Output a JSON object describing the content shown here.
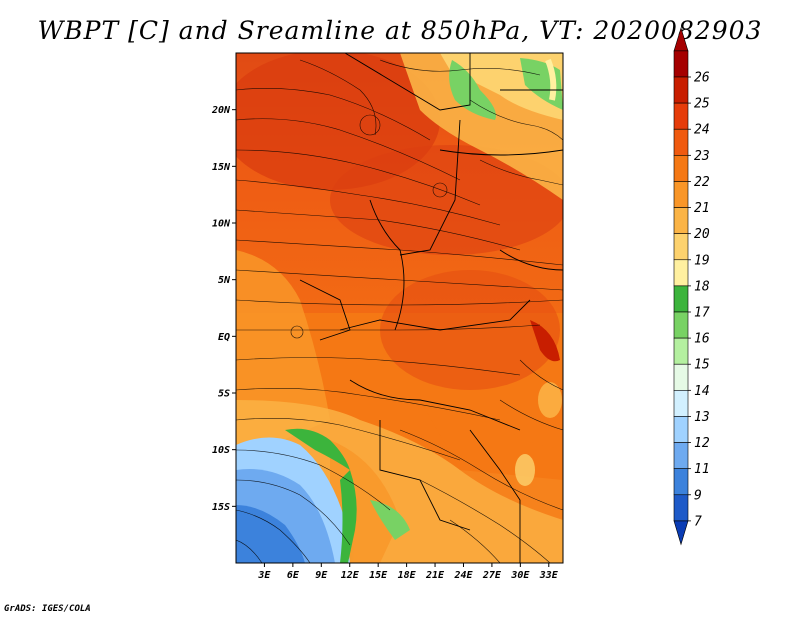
{
  "title": "WBPT [C] and Sreamline at 850hPa, VT: 2020082903",
  "credit": "GrADS: IGES/COLA",
  "map": {
    "lat_labels": [
      "20N",
      "15N",
      "10N",
      "5N",
      "EQ",
      "5S",
      "10S",
      "15S"
    ],
    "lat_values": [
      20,
      15,
      10,
      5,
      0,
      -5,
      -10,
      -15
    ],
    "lon_labels": [
      "3E",
      "6E",
      "9E",
      "12E",
      "15E",
      "18E",
      "21E",
      "24E",
      "27E",
      "30E",
      "33E"
    ],
    "lon_values": [
      3,
      6,
      9,
      12,
      15,
      18,
      21,
      24,
      27,
      30,
      33
    ],
    "lat_range": [
      -20,
      25
    ],
    "lon_range": [
      0,
      34.5
    ]
  },
  "colorbar": {
    "labels": [
      "26",
      "25",
      "24",
      "23",
      "22",
      "21",
      "20",
      "19",
      "18",
      "17",
      "16",
      "15",
      "14",
      "13",
      "12",
      "11",
      "9",
      "7"
    ],
    "colors": [
      "#a50000",
      "#c81e00",
      "#e63c0a",
      "#f05a0f",
      "#f57814",
      "#f99628",
      "#fbb446",
      "#fdd26e",
      "#fff0a0",
      "#3cb43c",
      "#78d264",
      "#b4f0a0",
      "#e6fae6",
      "#d2f0ff",
      "#a0d2ff",
      "#6eaaf0",
      "#3c82dc",
      "#1e5ac8",
      "#0a3cb4"
    ]
  }
}
